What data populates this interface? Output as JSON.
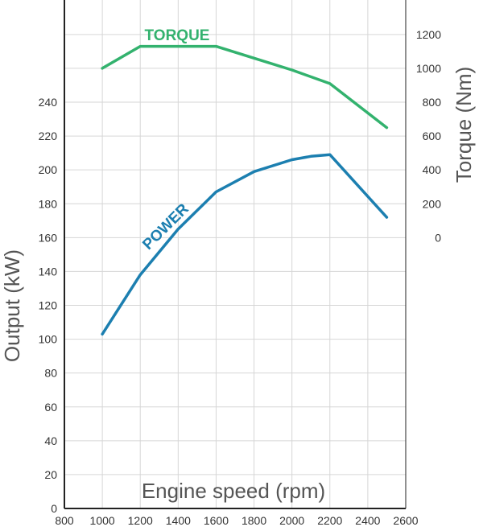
{
  "chart_data": {
    "type": "line",
    "xlabel": "Engine speed (rpm)",
    "ylabel_left": "Output (kW)",
    "ylabel_right": "Torque (Nm)",
    "x_ticks": [
      "800",
      "1000",
      "1200",
      "1400",
      "1600",
      "1800",
      "2000",
      "2200",
      "2400",
      "2600"
    ],
    "y_left_ticks": [
      "0",
      "20",
      "40",
      "60",
      "80",
      "100",
      "120",
      "140",
      "160",
      "180",
      "200",
      "220",
      "240"
    ],
    "y_right_ticks": [
      "0",
      "200",
      "400",
      "600",
      "800",
      "1000",
      "1200"
    ],
    "xlim": [
      800,
      2600
    ],
    "ylim_left": [
      0,
      290
    ],
    "right_axis_map": {
      "torque_0_at_output": 160,
      "torque_1200_at_output": 280
    },
    "grid": true,
    "series": [
      {
        "name": "TORQUE",
        "axis": "right",
        "color": "#33b26e",
        "points": [
          [
            1000,
            1000
          ],
          [
            1200,
            1130
          ],
          [
            1400,
            1130
          ],
          [
            1600,
            1130
          ],
          [
            1800,
            1060
          ],
          [
            2000,
            990
          ],
          [
            2200,
            910
          ],
          [
            2500,
            650
          ]
        ]
      },
      {
        "name": "POWER",
        "axis": "left",
        "color": "#1c7fb0",
        "points": [
          [
            1000,
            103
          ],
          [
            1200,
            138
          ],
          [
            1400,
            165
          ],
          [
            1600,
            187
          ],
          [
            1800,
            199
          ],
          [
            2000,
            206
          ],
          [
            2100,
            208
          ],
          [
            2200,
            209
          ],
          [
            2500,
            172
          ]
        ]
      }
    ]
  }
}
